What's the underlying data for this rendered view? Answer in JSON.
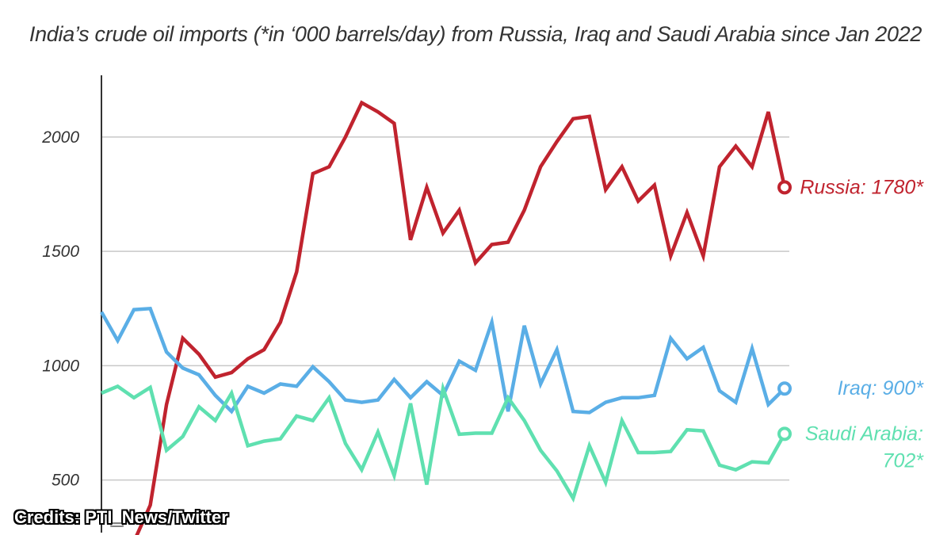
{
  "chart_data": {
    "type": "line",
    "title": "India’s crude oil imports (*in ‘000 barrels/day) from Russia, Iraq and Saudi Arabia since Jan 2022",
    "xlabel": "",
    "ylabel": "",
    "ylim": [
      270,
      2270
    ],
    "yticks": [
      500,
      1000,
      1500,
      2000
    ],
    "grid": true,
    "colors": {
      "russia": "#c0232e",
      "iraq": "#5aaee6",
      "saudi": "#5fe0b0"
    },
    "series": [
      {
        "key": "russia",
        "label_lines": [
          "Russia: 1780*"
        ],
        "values": [
          150,
          230,
          390,
          830,
          1120,
          1050,
          950,
          970,
          1030,
          1070,
          1190,
          1410,
          1840,
          1870,
          2000,
          2150,
          2110,
          2060,
          1550,
          1780,
          1580,
          1680,
          1450,
          1530,
          1540,
          1680,
          1870,
          1980,
          2080,
          2090,
          1770,
          1870,
          1720,
          1790,
          1480,
          1670,
          1480,
          1870,
          1960,
          1870,
          2110,
          1780
        ]
      },
      {
        "key": "iraq",
        "label_lines": [
          "Iraq: 900*"
        ],
        "values": [
          1235,
          1110,
          1245,
          1250,
          1060,
          990,
          960,
          870,
          800,
          910,
          880,
          920,
          910,
          995,
          930,
          850,
          840,
          850,
          940,
          860,
          930,
          870,
          1020,
          980,
          1190,
          800,
          1175,
          920,
          1070,
          800,
          795,
          840,
          860,
          860,
          870,
          1120,
          1030,
          1080,
          890,
          840,
          1075,
          830,
          900
        ]
      },
      {
        "key": "saudi",
        "label_lines": [
          "Saudi Arabia:",
          "702*"
        ],
        "values": [
          880,
          910,
          860,
          905,
          630,
          690,
          820,
          760,
          880,
          650,
          670,
          680,
          780,
          760,
          860,
          660,
          545,
          710,
          520,
          835,
          480,
          900,
          700,
          705,
          705,
          860,
          760,
          630,
          540,
          420,
          650,
          490,
          760,
          620,
          620,
          625,
          720,
          715,
          565,
          545,
          580,
          575,
          702
        ]
      }
    ]
  },
  "credits": "Credits: PTI_News/Twitter"
}
